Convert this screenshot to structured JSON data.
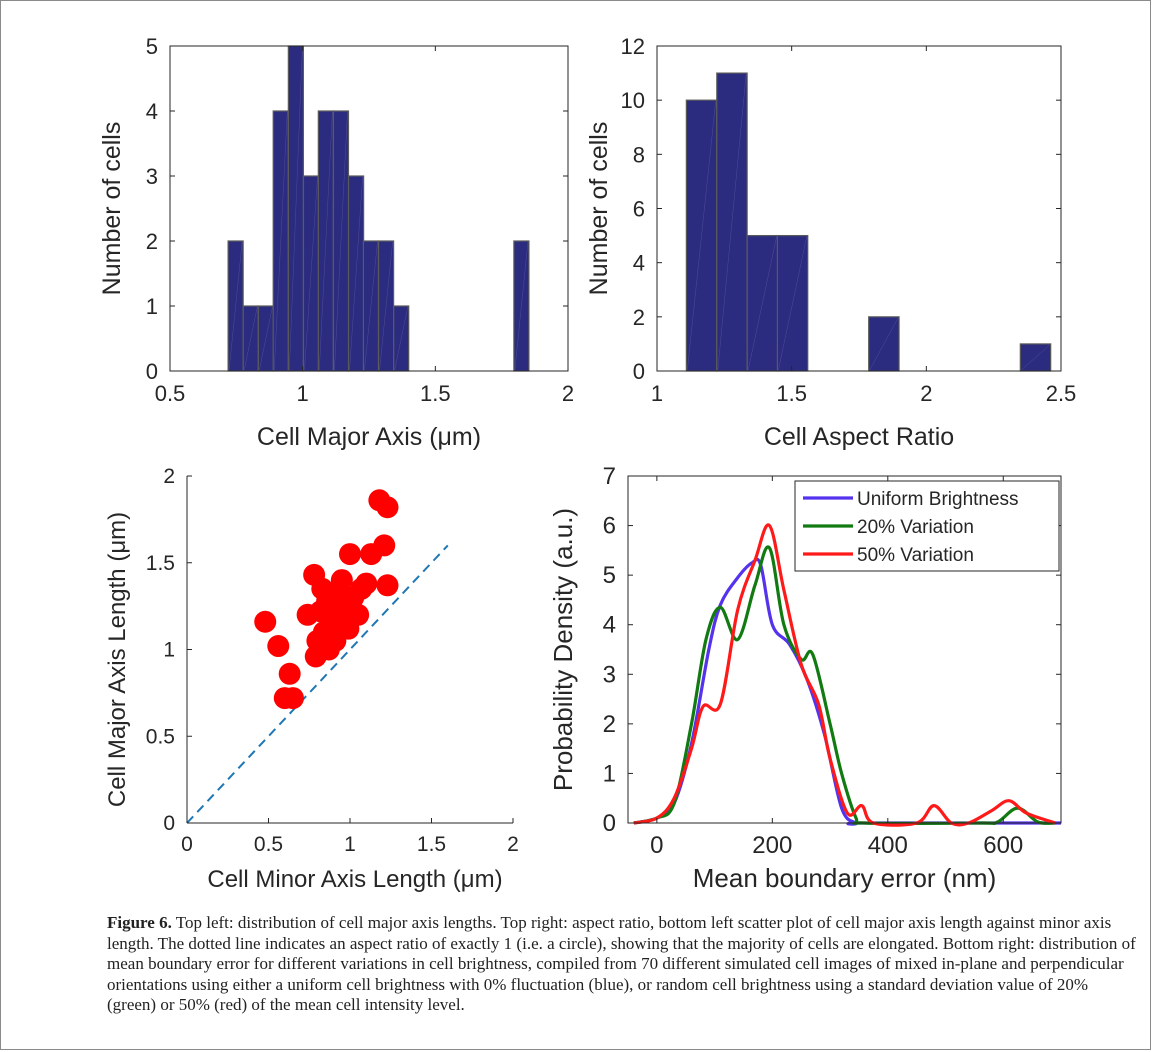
{
  "chart_data": [
    {
      "type": "bar",
      "panel": "top-left",
      "xlabel": "Cell Major Axis (μm)",
      "ylabel": "Number of cells",
      "xlim": [
        0.5,
        2
      ],
      "ylim": [
        0,
        5
      ],
      "xticks": [
        "0.5",
        "1",
        "1.5",
        "2"
      ],
      "yticks": [
        "0",
        "1",
        "2",
        "3",
        "4",
        "5"
      ],
      "bin_width": 0.0567,
      "bin_starts": [
        0.719,
        0.776,
        0.833,
        0.889,
        0.946,
        1.003,
        1.059,
        1.116,
        1.173,
        1.229,
        1.286,
        1.343,
        1.399,
        1.456,
        1.513,
        1.569,
        1.626,
        1.683,
        1.739,
        1.796
      ],
      "values": [
        2,
        1,
        1,
        4,
        5,
        3,
        4,
        4,
        3,
        2,
        2,
        1,
        0,
        0,
        0,
        0,
        0,
        0,
        0,
        2
      ],
      "bar_color": "#2b2b80",
      "grid": false
    },
    {
      "type": "bar",
      "panel": "top-right",
      "xlabel": "Cell Aspect Ratio",
      "ylabel": "Number of cells",
      "xlim": [
        1,
        2.5
      ],
      "ylim": [
        0,
        12
      ],
      "xticks": [
        "1",
        "1.5",
        "2",
        "2.5"
      ],
      "yticks": [
        "0",
        "2",
        "4",
        "6",
        "8",
        "10",
        "12"
      ],
      "bin_width": 0.1127,
      "bin_starts": [
        1.109,
        1.222,
        1.335,
        1.447,
        1.56,
        1.673,
        1.786,
        1.898,
        2.011,
        2.124,
        2.236,
        2.349
      ],
      "values": [
        10,
        11,
        5,
        5,
        0,
        0,
        2,
        0,
        0,
        0,
        0,
        1
      ],
      "bar_color": "#2b2b80",
      "grid": false
    },
    {
      "type": "scatter",
      "panel": "bottom-left",
      "xlabel": "Cell Minor Axis Length (μm)",
      "ylabel": "Cell Major Axis Length (μm)",
      "xlim": [
        0,
        2
      ],
      "ylim": [
        0,
        2
      ],
      "xticks": [
        "0",
        "0.5",
        "1",
        "1.5",
        "2"
      ],
      "yticks": [
        "0",
        "0.5",
        "1",
        "1.5",
        "2"
      ],
      "points": [
        [
          0.48,
          1.16
        ],
        [
          0.56,
          1.02
        ],
        [
          0.6,
          0.72
        ],
        [
          0.63,
          0.86
        ],
        [
          0.65,
          0.72
        ],
        [
          0.74,
          1.2
        ],
        [
          0.78,
          1.43
        ],
        [
          0.79,
          0.96
        ],
        [
          0.8,
          1.05
        ],
        [
          0.82,
          1.22
        ],
        [
          0.83,
          1.35
        ],
        [
          0.84,
          1.1
        ],
        [
          0.86,
          1.28
        ],
        [
          0.87,
          1.0
        ],
        [
          0.88,
          1.15
        ],
        [
          0.9,
          1.22
        ],
        [
          0.91,
          1.05
        ],
        [
          0.92,
          1.32
        ],
        [
          0.94,
          1.18
        ],
        [
          0.95,
          1.4
        ],
        [
          0.97,
          1.25
        ],
        [
          0.99,
          1.12
        ],
        [
          1.0,
          1.55
        ],
        [
          1.02,
          1.3
        ],
        [
          1.05,
          1.2
        ],
        [
          1.07,
          1.35
        ],
        [
          1.1,
          1.38
        ],
        [
          1.13,
          1.55
        ],
        [
          1.18,
          1.86
        ],
        [
          1.21,
          1.6
        ],
        [
          1.23,
          1.82
        ],
        [
          1.23,
          1.37
        ]
      ],
      "reference_line": {
        "x": [
          0,
          1.6
        ],
        "y": [
          0,
          1.6
        ],
        "style": "dashed",
        "color": "#1f77b4"
      },
      "point_color": "#ff0000",
      "grid": false
    },
    {
      "type": "line",
      "panel": "bottom-right",
      "xlabel": "Mean boundary error (nm)",
      "ylabel": "Probability Density (a.u.)",
      "xlim": [
        -50,
        700
      ],
      "ylim": [
        0,
        7
      ],
      "xticks": [
        "0",
        "200",
        "400",
        "600"
      ],
      "yticks": [
        "0",
        "1",
        "2",
        "3",
        "4",
        "5",
        "6",
        "7"
      ],
      "legend": "top-right",
      "series": [
        {
          "name": "Uniform Brightness",
          "color": "#5533ee",
          "x": [
            -40,
            0,
            30,
            60,
            90,
            110,
            140,
            165,
            180,
            200,
            230,
            260,
            290,
            320,
            345,
            360,
            700
          ],
          "y": [
            0,
            0.1,
            0.4,
            1.6,
            3.5,
            4.4,
            4.95,
            5.25,
            5.2,
            4.0,
            3.6,
            2.9,
            1.8,
            0.3,
            0,
            0,
            0
          ]
        },
        {
          "name": "20% Variation",
          "color": "#117a11",
          "x": [
            -40,
            0,
            30,
            60,
            85,
            110,
            140,
            170,
            195,
            220,
            250,
            270,
            300,
            320,
            345,
            360,
            560,
            590,
            625,
            660,
            690
          ],
          "y": [
            0,
            0.1,
            0.4,
            2.0,
            3.7,
            4.35,
            3.7,
            4.8,
            5.55,
            4.0,
            3.3,
            3.4,
            2.0,
            1.0,
            0.1,
            0,
            0,
            0.02,
            0.3,
            0.02,
            0
          ]
        },
        {
          "name": "50% Variation",
          "color": "#ff1a1a",
          "x": [
            -40,
            0,
            30,
            60,
            80,
            110,
            140,
            170,
            195,
            220,
            250,
            280,
            300,
            330,
            355,
            375,
            450,
            480,
            510,
            540,
            580,
            610,
            640,
            690
          ],
          "y": [
            0,
            0.1,
            0.5,
            1.5,
            2.35,
            2.4,
            4.3,
            5.3,
            6.0,
            4.7,
            3.2,
            2.4,
            1.3,
            0.2,
            0.35,
            0,
            0,
            0.35,
            0,
            0,
            0.25,
            0.45,
            0.2,
            0
          ]
        }
      ],
      "grid": false
    }
  ],
  "caption": {
    "label": "Figure 6.",
    "text": " Top left: distribution of cell major axis lengths. Top right: aspect ratio, bottom left scatter plot of cell major axis length against minor axis length. The dotted line indicates an aspect ratio of exactly 1 (i.e. a circle), showing that the majority of cells are elongated. Bottom right: distribution of mean boundary error for different variations in cell brightness, compiled from 70 different simulated cell images of mixed in-plane and perpendicular orientations using either a uniform cell brightness with 0% fluctuation (blue), or random cell brightness using a standard deviation value of 20% (green) or 50% (red) of the mean cell intensity level."
  }
}
